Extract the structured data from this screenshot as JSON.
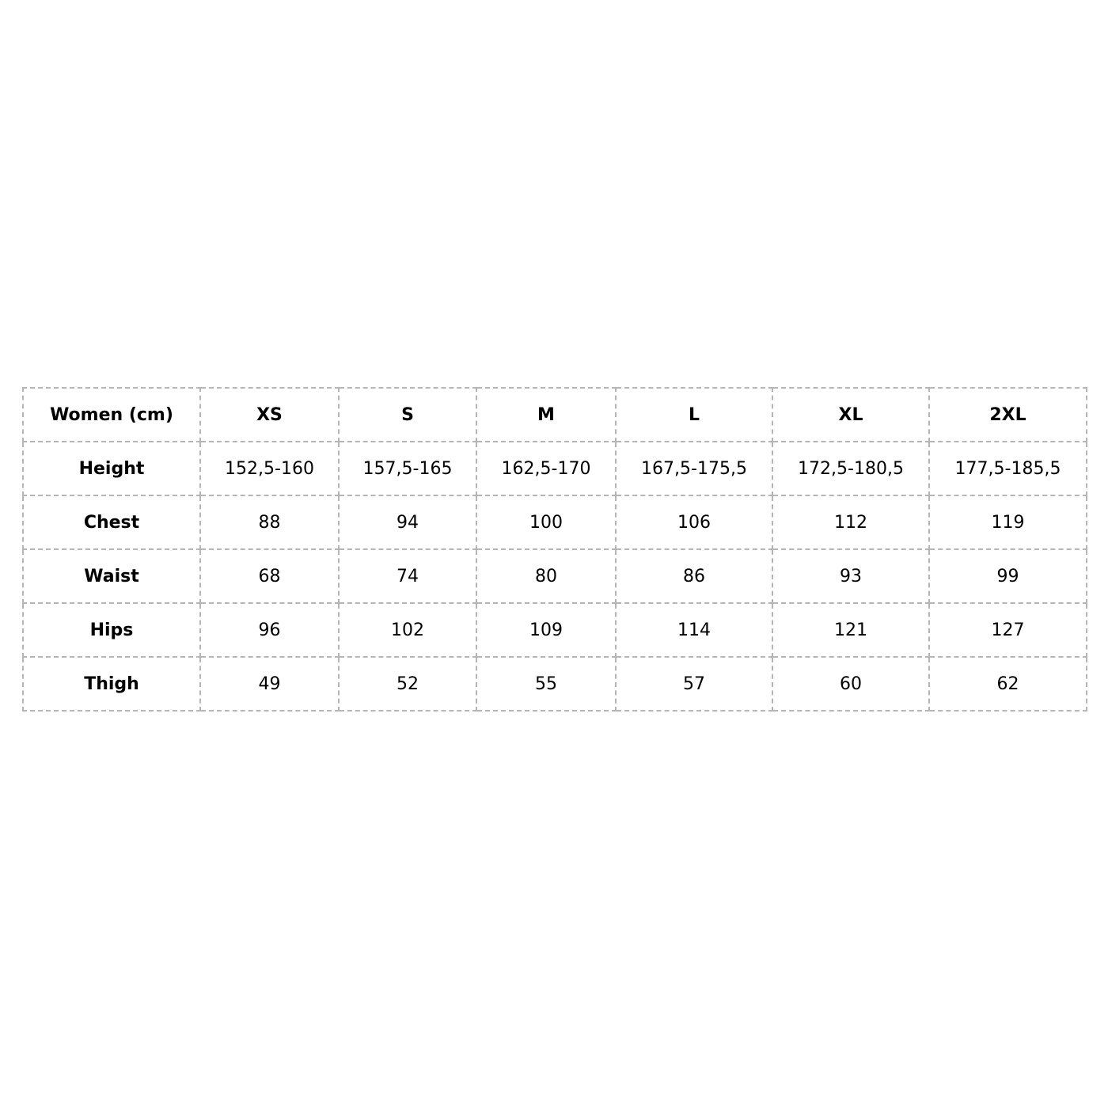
{
  "table": {
    "header": [
      "Women (cm)",
      "XS",
      "S",
      "M",
      "L",
      "XL",
      "2XL"
    ],
    "rows": [
      [
        "Height",
        "152,5-160",
        "157,5-165",
        "162,5-170",
        "167,5-175,5",
        "172,5-180,5",
        "177,5-185,5"
      ],
      [
        "Chest",
        88,
        94,
        100,
        106,
        112,
        119
      ],
      [
        "Waist",
        68,
        74,
        80,
        86,
        93,
        99
      ],
      [
        "Hips",
        96,
        102,
        109,
        114,
        121,
        127
      ],
      [
        "Thigh",
        49,
        52,
        55,
        57,
        60,
        62
      ]
    ]
  }
}
